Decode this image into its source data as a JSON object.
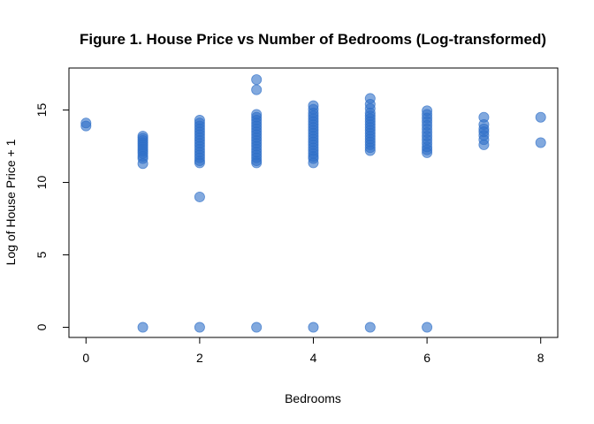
{
  "chart_data": {
    "type": "scatter",
    "title": "Figure 1. House Price vs Number of Bedrooms (Log-transformed)",
    "xlabel": "Bedrooms",
    "ylabel": "Log of House Price + 1",
    "xlim": [
      -0.3,
      8.3
    ],
    "ylim": [
      -0.7,
      17.9
    ],
    "xticks": [
      0,
      2,
      4,
      6,
      8
    ],
    "yticks": [
      0,
      5,
      10,
      15
    ],
    "grid": false,
    "point_color": "#2F6FC8",
    "series": [
      {
        "points": [
          [
            0,
            14.1
          ],
          [
            0,
            13.9
          ],
          [
            1,
            13.2
          ],
          [
            1,
            13.05
          ],
          [
            1,
            12.9
          ],
          [
            1,
            12.75
          ],
          [
            1,
            12.6
          ],
          [
            1,
            12.45
          ],
          [
            1,
            12.3
          ],
          [
            1,
            12.15
          ],
          [
            1,
            12.0
          ],
          [
            1,
            11.8
          ],
          [
            1,
            11.65
          ],
          [
            1,
            11.3
          ],
          [
            1,
            0
          ],
          [
            2,
            14.3
          ],
          [
            2,
            14.1
          ],
          [
            2,
            13.9
          ],
          [
            2,
            13.7
          ],
          [
            2,
            13.5
          ],
          [
            2,
            13.3
          ],
          [
            2,
            13.1
          ],
          [
            2,
            12.9
          ],
          [
            2,
            12.7
          ],
          [
            2,
            12.5
          ],
          [
            2,
            12.3
          ],
          [
            2,
            12.1
          ],
          [
            2,
            11.9
          ],
          [
            2,
            11.7
          ],
          [
            2,
            11.5
          ],
          [
            2,
            11.35
          ],
          [
            2,
            9.0
          ],
          [
            2,
            0
          ],
          [
            3,
            17.1
          ],
          [
            3,
            16.4
          ],
          [
            3,
            14.7
          ],
          [
            3,
            14.5
          ],
          [
            3,
            14.3
          ],
          [
            3,
            14.1
          ],
          [
            3,
            13.9
          ],
          [
            3,
            13.7
          ],
          [
            3,
            13.5
          ],
          [
            3,
            13.3
          ],
          [
            3,
            13.1
          ],
          [
            3,
            12.9
          ],
          [
            3,
            12.7
          ],
          [
            3,
            12.5
          ],
          [
            3,
            12.3
          ],
          [
            3,
            12.1
          ],
          [
            3,
            11.9
          ],
          [
            3,
            11.7
          ],
          [
            3,
            11.5
          ],
          [
            3,
            11.35
          ],
          [
            3,
            0
          ],
          [
            4,
            15.3
          ],
          [
            4,
            15.05
          ],
          [
            4,
            14.8
          ],
          [
            4,
            14.6
          ],
          [
            4,
            14.4
          ],
          [
            4,
            14.2
          ],
          [
            4,
            14.0
          ],
          [
            4,
            13.8
          ],
          [
            4,
            13.6
          ],
          [
            4,
            13.4
          ],
          [
            4,
            13.2
          ],
          [
            4,
            13.0
          ],
          [
            4,
            12.8
          ],
          [
            4,
            12.6
          ],
          [
            4,
            12.4
          ],
          [
            4,
            12.2
          ],
          [
            4,
            12.0
          ],
          [
            4,
            11.8
          ],
          [
            4,
            11.65
          ],
          [
            4,
            11.35
          ],
          [
            4,
            0
          ],
          [
            5,
            15.8
          ],
          [
            5,
            15.4
          ],
          [
            5,
            15.1
          ],
          [
            5,
            14.8
          ],
          [
            5,
            14.6
          ],
          [
            5,
            14.4
          ],
          [
            5,
            14.2
          ],
          [
            5,
            14.0
          ],
          [
            5,
            13.8
          ],
          [
            5,
            13.6
          ],
          [
            5,
            13.4
          ],
          [
            5,
            13.2
          ],
          [
            5,
            13.0
          ],
          [
            5,
            12.8
          ],
          [
            5,
            12.6
          ],
          [
            5,
            12.4
          ],
          [
            5,
            12.2
          ],
          [
            5,
            0
          ],
          [
            6,
            14.95
          ],
          [
            6,
            14.7
          ],
          [
            6,
            14.45
          ],
          [
            6,
            14.2
          ],
          [
            6,
            13.95
          ],
          [
            6,
            13.7
          ],
          [
            6,
            13.45
          ],
          [
            6,
            13.2
          ],
          [
            6,
            12.95
          ],
          [
            6,
            12.7
          ],
          [
            6,
            12.45
          ],
          [
            6,
            12.25
          ],
          [
            6,
            12.05
          ],
          [
            6,
            0
          ],
          [
            7,
            14.5
          ],
          [
            7,
            14.0
          ],
          [
            7,
            13.7
          ],
          [
            7,
            13.5
          ],
          [
            7,
            13.25
          ],
          [
            7,
            12.95
          ],
          [
            7,
            12.6
          ],
          [
            8,
            14.5
          ],
          [
            8,
            12.75
          ]
        ]
      }
    ]
  }
}
